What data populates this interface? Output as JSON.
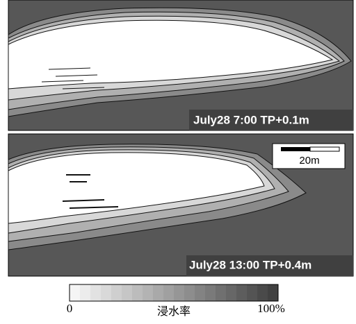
{
  "panels": [
    {
      "label": "July28 7:00 TP+0.1m"
    },
    {
      "label": "July28 13:00 TP+0.4m"
    }
  ],
  "scale_bar": {
    "label": "20m"
  },
  "colorbar": {
    "min_label": "0",
    "title": "浸水率",
    "max_label": "100%"
  }
}
